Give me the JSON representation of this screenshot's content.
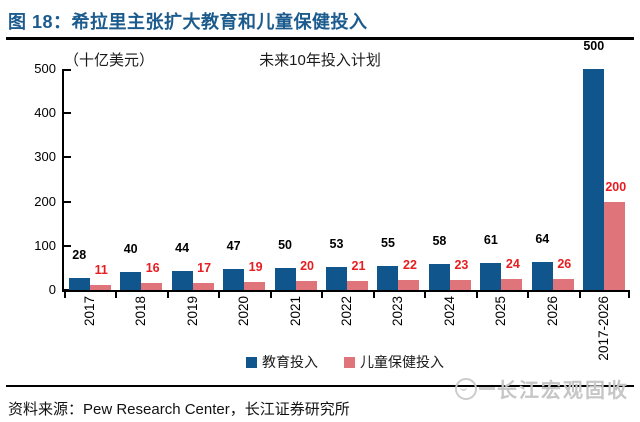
{
  "header": {
    "figure_label": "图 18：希拉里主张扩大教育和儿童保健投入"
  },
  "chart_data": {
    "type": "bar",
    "title": "未来10年投入计划",
    "unit_label": "（十亿美元）",
    "xlabel": "",
    "ylabel": "",
    "ylim": [
      0,
      500
    ],
    "yticks": [
      0,
      100,
      200,
      300,
      400,
      500
    ],
    "grid": false,
    "legend_position": "bottom-center",
    "categories": [
      "2017",
      "2018",
      "2019",
      "2020",
      "2021",
      "2022",
      "2023",
      "2024",
      "2025",
      "2026",
      "2017-2026"
    ],
    "series": [
      {
        "name": "教育投入",
        "color": "#10568C",
        "label_color": "#000000",
        "values": [
          28,
          40,
          44,
          47,
          50,
          53,
          55,
          58,
          61,
          64,
          500
        ]
      },
      {
        "name": "儿童保健投入",
        "color": "#DF747A",
        "label_color": "#E71D20",
        "values": [
          11,
          16,
          17,
          19,
          20,
          21,
          22,
          23,
          24,
          26,
          200
        ]
      }
    ]
  },
  "footer": {
    "source": "资料来源：Pew Research Center，长江证券研究所",
    "watermark": "长江宏观固收"
  },
  "colors": {
    "title_blue": "#1C5B8D",
    "education_bar": "#10568C",
    "healthcare_bar": "#DF747A",
    "value_label_red": "#E71D20",
    "axis_black": "#000000",
    "watermark_gray": "#C6C6C6"
  }
}
